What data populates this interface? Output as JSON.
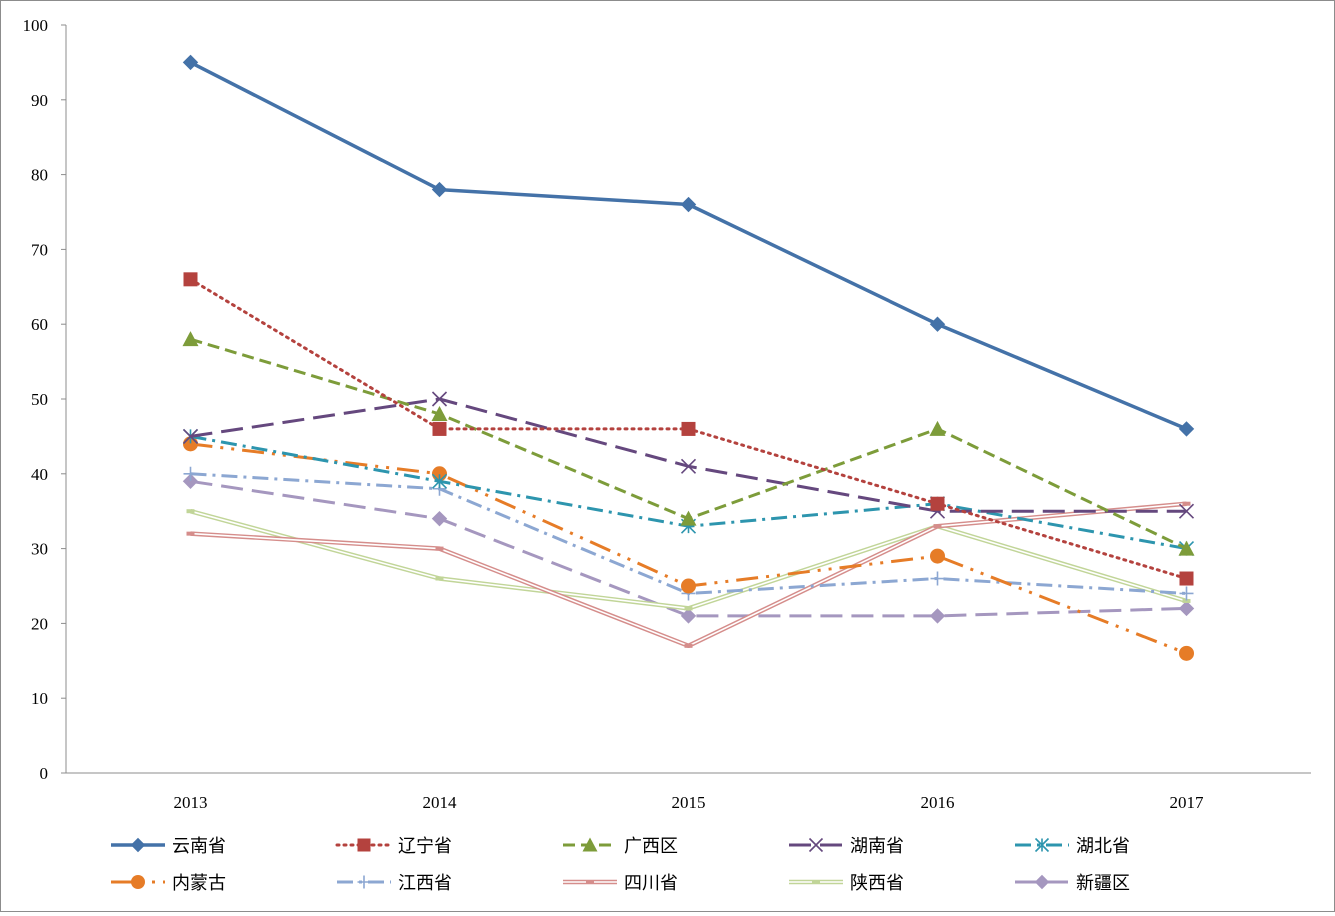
{
  "chart_data": {
    "type": "line",
    "title": "",
    "xlabel": "",
    "ylabel": "",
    "categories": [
      "2013",
      "2014",
      "2015",
      "2016",
      "2017"
    ],
    "ylim": [
      0,
      100
    ],
    "yticks": [
      "0",
      "10",
      "20",
      "30",
      "40",
      "50",
      "60",
      "70",
      "80",
      "90",
      "100"
    ],
    "grid": false,
    "legend_position": "bottom",
    "series": [
      {
        "name": "云南省",
        "values": [
          95,
          78,
          76,
          60,
          46
        ],
        "color": "#4472A8",
        "marker": "diamond",
        "line": "solid"
      },
      {
        "name": "辽宁省",
        "values": [
          66,
          46,
          46,
          36,
          26
        ],
        "color": "#B4423E",
        "marker": "square",
        "line": "dotted"
      },
      {
        "name": "广西区",
        "values": [
          58,
          48,
          34,
          46,
          30
        ],
        "color": "#7D9C3A",
        "marker": "triangle",
        "line": "dashed"
      },
      {
        "name": "湖南省",
        "values": [
          45,
          50,
          41,
          35,
          35
        ],
        "color": "#65487E",
        "marker": "x",
        "line": "longdash"
      },
      {
        "name": "湖北省",
        "values": [
          45,
          39,
          33,
          36,
          30
        ],
        "color": "#2D95AE",
        "marker": "star",
        "line": "dashdot"
      },
      {
        "name": "内蒙古",
        "values": [
          44,
          40,
          25,
          29,
          16
        ],
        "color": "#E67C27",
        "marker": "circle",
        "line": "longdashdot"
      },
      {
        "name": "江西省",
        "values": [
          40,
          38,
          24,
          26,
          24
        ],
        "color": "#8CA7D2",
        "marker": "plus",
        "line": "dashdot"
      },
      {
        "name": "四川省",
        "values": [
          32,
          30,
          17,
          33,
          36
        ],
        "color": "#D58D8B",
        "marker": "dash",
        "line": "double"
      },
      {
        "name": "陕西省",
        "values": [
          35,
          26,
          22,
          33,
          23
        ],
        "color": "#C1D598",
        "marker": "dash",
        "line": "double"
      },
      {
        "name": "新疆区",
        "values": [
          39,
          34,
          21,
          21,
          22
        ],
        "color": "#A597BF",
        "marker": "diamond",
        "line": "longdash"
      }
    ]
  }
}
